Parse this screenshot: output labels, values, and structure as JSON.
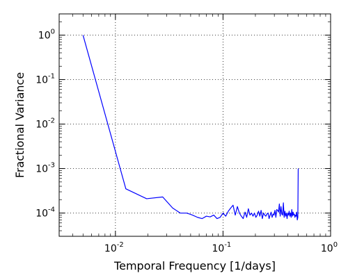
{
  "chart_data": {
    "type": "line",
    "title": "",
    "xlabel": "Temporal Frequency [1/days]",
    "ylabel": "Fractional Variance",
    "xscale": "log",
    "yscale": "log",
    "xlim": [
      0.003,
      1.0
    ],
    "ylim": [
      3e-05,
      3.0
    ],
    "grid": true,
    "line_color": "#0000ff",
    "x_ticks": [
      {
        "value": 0.01,
        "base": "10",
        "exp": "-2"
      },
      {
        "value": 0.1,
        "base": "10",
        "exp": "-1"
      },
      {
        "value": 1.0,
        "base": "10",
        "exp": "0"
      }
    ],
    "y_ticks": [
      {
        "value": 0.0001,
        "base": "10",
        "exp": "-4"
      },
      {
        "value": 0.001,
        "base": "10",
        "exp": "-3"
      },
      {
        "value": 0.01,
        "base": "10",
        "exp": "-2"
      },
      {
        "value": 0.1,
        "base": "10",
        "exp": "-1"
      },
      {
        "value": 1.0,
        "base": "10",
        "exp": "0"
      }
    ],
    "series": [
      {
        "x": [
          0.005,
          0.0125,
          0.0195,
          0.0275,
          0.034,
          0.04,
          0.046,
          0.052,
          0.058,
          0.064,
          0.07,
          0.076,
          0.082,
          0.088,
          0.094,
          0.1,
          0.106,
          0.112,
          0.118,
          0.124,
          0.13,
          0.136,
          0.142,
          0.148,
          0.154,
          0.16,
          0.166,
          0.172,
          0.178,
          0.184,
          0.19,
          0.196,
          0.202,
          0.208,
          0.214,
          0.22,
          0.226,
          0.232,
          0.238,
          0.244,
          0.25,
          0.256,
          0.262,
          0.268,
          0.274,
          0.28,
          0.286,
          0.292,
          0.298,
          0.304,
          0.31,
          0.316,
          0.322,
          0.328,
          0.334,
          0.34,
          0.346,
          0.352,
          0.358,
          0.364,
          0.37,
          0.376,
          0.382,
          0.388,
          0.394,
          0.4,
          0.406,
          0.412,
          0.418,
          0.424,
          0.43,
          0.436,
          0.442,
          0.448,
          0.454,
          0.46,
          0.466,
          0.472,
          0.478,
          0.484,
          0.49,
          0.496,
          0.5
        ],
        "y": [
          1.0,
          0.00035,
          0.00021,
          0.00023,
          0.00013,
          0.0001,
          0.0001,
          9e-05,
          8e-05,
          7.5e-05,
          8.5e-05,
          8.2e-05,
          9e-05,
          7.5e-05,
          8e-05,
          0.0001,
          8.5e-05,
          0.00011,
          0.00013,
          0.00015,
          9e-05,
          0.00014,
          0.0001,
          8.5e-05,
          7.5e-05,
          0.000105,
          8e-05,
          0.000125,
          9e-05,
          0.0001,
          8.5e-05,
          0.0001,
          8e-05,
          9e-05,
          0.00011,
          8.5e-05,
          0.000115,
          7.5e-05,
          0.0001,
          9e-05,
          8.5e-05,
          9.5e-05,
          0.0001,
          7.5e-05,
          9e-05,
          0.000105,
          8e-05,
          9.5e-05,
          9e-05,
          0.000115,
          8e-05,
          0.00012,
          0.000115,
          0.000105,
          0.00016,
          8.5e-05,
          0.00014,
          9.5e-05,
          9e-05,
          0.00017,
          8e-05,
          0.00011,
          8.5e-05,
          0.0001,
          7.5e-05,
          0.0001,
          9e-05,
          0.00011,
          8.5e-05,
          0.0001,
          8e-05,
          0.00012,
          8.5e-05,
          0.000105,
          9e-05,
          9.5e-05,
          8e-05,
          9e-05,
          8.5e-05,
          0.000105,
          7e-05,
          8e-05,
          0.001
        ]
      }
    ]
  }
}
